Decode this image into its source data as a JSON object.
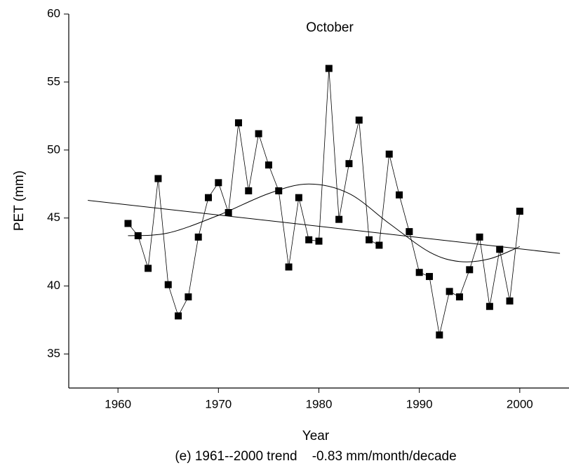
{
  "chart_data": {
    "type": "scatter",
    "title": "October",
    "x_label": "Year",
    "y_label": "PET (mm)",
    "caption": "(e) 1961--2000 trend    -0.83 mm/month/decade",
    "xlim": [
      1955.1,
      2004.9
    ],
    "xticks": [
      1960,
      1970,
      1980,
      1990,
      2000
    ],
    "ylim": [
      32.5,
      60
    ],
    "yticks": [
      35,
      40,
      45,
      50,
      55,
      60
    ],
    "series": [
      {
        "kind": "points",
        "color": "#000000",
        "x": [
          1961,
          1962,
          1963,
          1964,
          1965,
          1966,
          1967,
          1968,
          1969,
          1970,
          1971,
          1972,
          1973,
          1974,
          1975,
          1976,
          1977,
          1978,
          1979,
          1980,
          1981,
          1982,
          1983,
          1984,
          1985,
          1986,
          1987,
          1988,
          1989,
          1990,
          1991,
          1992,
          1993,
          1994,
          1995,
          1996,
          1997,
          1998,
          1999,
          2000
        ],
        "values": [
          44.6,
          43.7,
          41.3,
          47.9,
          40.1,
          37.8,
          39.2,
          43.6,
          46.5,
          47.6,
          45.4,
          52.0,
          47.0,
          51.2,
          48.9,
          47.0,
          41.4,
          46.5,
          43.4,
          43.3,
          56.0,
          44.9,
          49.0,
          52.2,
          43.4,
          43.0,
          49.7,
          46.7,
          44.0,
          41.0,
          40.7,
          36.4,
          39.6,
          39.2,
          41.2,
          43.6,
          38.5,
          42.7,
          38.9,
          45.5
        ]
      },
      {
        "kind": "trend",
        "color": "#000000",
        "x": [
          1957,
          2004
        ],
        "values": [
          46.3,
          42.4
        ]
      },
      {
        "kind": "smooth",
        "color": "#000000",
        "x": [
          1961,
          1965,
          1970,
          1975,
          1979,
          1983,
          1987,
          1991,
          1994,
          1997,
          2000
        ],
        "values": [
          43.7,
          43.9,
          45.2,
          46.8,
          47.5,
          46.8,
          44.6,
          42.5,
          41.8,
          42.0,
          42.9
        ]
      }
    ]
  }
}
